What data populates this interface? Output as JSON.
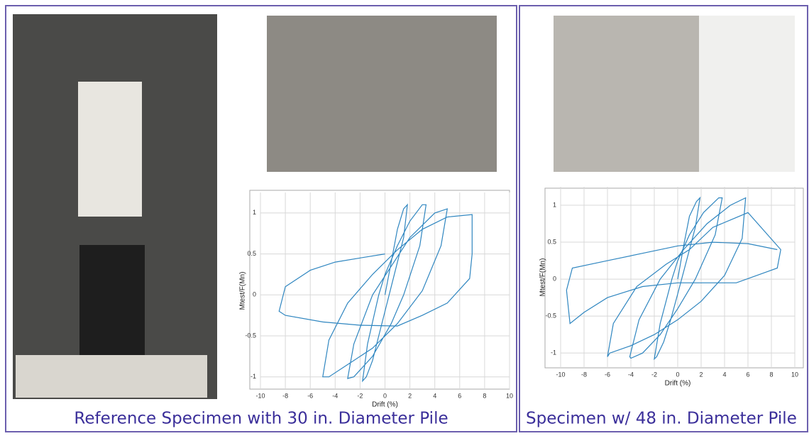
{
  "chart_data": [
    {
      "type": "line",
      "xlabel": "Drift (%)",
      "ylabel": "Mtest/F(Mn)",
      "xlim": [
        -10,
        10
      ],
      "xticks": [
        -10,
        -8,
        -6,
        -4,
        -2,
        0,
        2,
        4,
        6,
        8,
        10
      ],
      "ylim": [
        -1.15,
        1.25
      ],
      "yticks": [
        -1,
        -0.5,
        0,
        0.5,
        1
      ],
      "grid": true,
      "series": [
        {
          "color": "#2f86c0",
          "x": [
            0,
            0.5,
            1,
            1.5,
            1.8,
            1.5,
            0.5,
            0,
            -0.5,
            -1,
            -1.5,
            -1.8,
            -1.4,
            -0.5,
            0,
            1,
            2,
            3,
            3.3,
            2.8,
            1.5,
            0.5,
            -1,
            -2.5,
            -3,
            -2.5,
            -1,
            0.5,
            2,
            4,
            5,
            4.5,
            3,
            1,
            -1,
            -3,
            -4.5,
            -5,
            -4.5,
            -3,
            -1,
            1,
            3,
            5,
            7,
            7,
            6.8,
            5,
            3,
            1,
            -2,
            -5,
            -8,
            -8.5,
            -8,
            -6,
            -4,
            -2,
            0
          ],
          "values": [
            0,
            0.4,
            0.8,
            1.05,
            1.1,
            0.7,
            0.1,
            -0.2,
            -0.5,
            -0.8,
            -1.0,
            -1.05,
            -0.6,
            0,
            0.25,
            0.6,
            0.9,
            1.1,
            1.1,
            0.6,
            0,
            -0.35,
            -0.75,
            -1.0,
            -1.02,
            -0.6,
            0,
            0.35,
            0.7,
            1.0,
            1.05,
            0.6,
            0.05,
            -0.35,
            -0.65,
            -0.85,
            -1.0,
            -1.0,
            -0.55,
            -0.1,
            0.25,
            0.55,
            0.8,
            0.95,
            0.98,
            0.5,
            0.2,
            -0.1,
            -0.25,
            -0.38,
            -0.37,
            -0.33,
            -0.25,
            -0.2,
            0.1,
            0.3,
            0.4,
            0.45,
            0.5
          ]
        }
      ]
    },
    {
      "type": "line",
      "xlabel": "Drift (%)",
      "ylabel": "Mtest/F(Mn)",
      "xlim": [
        -10,
        10
      ],
      "xticks": [
        -10,
        -8,
        -6,
        -4,
        -2,
        0,
        2,
        4,
        6,
        8,
        10
      ],
      "ylim": [
        -1.2,
        1.25
      ],
      "yticks": [
        -1,
        -0.5,
        0,
        0.5,
        1
      ],
      "grid": true,
      "series": [
        {
          "color": "#2f86c0",
          "x": [
            0,
            0.5,
            1,
            1.6,
            1.9,
            1.5,
            0.5,
            0,
            -0.6,
            -1.2,
            -1.8,
            -2,
            -1.5,
            -0.5,
            0,
            1,
            2.2,
            3.5,
            3.8,
            3.2,
            1.5,
            0,
            -1.5,
            -3,
            -4,
            -4.1,
            -3.3,
            -1.5,
            0.5,
            2.5,
            4.5,
            5.8,
            5.5,
            4,
            2,
            0,
            -2,
            -4,
            -5.8,
            -6,
            -5.5,
            -3.5,
            -1,
            1,
            3,
            6,
            8.8,
            8.5,
            5,
            2,
            0,
            -3,
            -6,
            -8,
            -9.2,
            -9.5,
            -9,
            -6,
            -3,
            0,
            3,
            6,
            8.5
          ],
          "values": [
            0,
            0.45,
            0.85,
            1.05,
            1.1,
            0.7,
            0.1,
            -0.2,
            -0.55,
            -0.85,
            -1.05,
            -1.08,
            -0.6,
            0,
            0.25,
            0.6,
            0.9,
            1.1,
            1.1,
            0.6,
            0,
            -0.4,
            -0.75,
            -1.0,
            -1.07,
            -1.05,
            -0.55,
            0,
            0.4,
            0.75,
            1.0,
            1.1,
            0.55,
            0.05,
            -0.3,
            -0.55,
            -0.75,
            -0.9,
            -1.0,
            -1.05,
            -0.6,
            -0.1,
            0.2,
            0.4,
            0.7,
            0.9,
            0.4,
            0.15,
            -0.05,
            -0.05,
            -0.05,
            -0.1,
            -0.25,
            -0.45,
            -0.6,
            -0.15,
            0.15,
            0.25,
            0.35,
            0.45,
            0.5,
            0.48,
            0.4
          ]
        }
      ]
    }
  ],
  "captions": [
    "Reference Specimen with 30 in. Diameter Pile",
    "Specimen w/ 48 in. Diameter Pile"
  ]
}
